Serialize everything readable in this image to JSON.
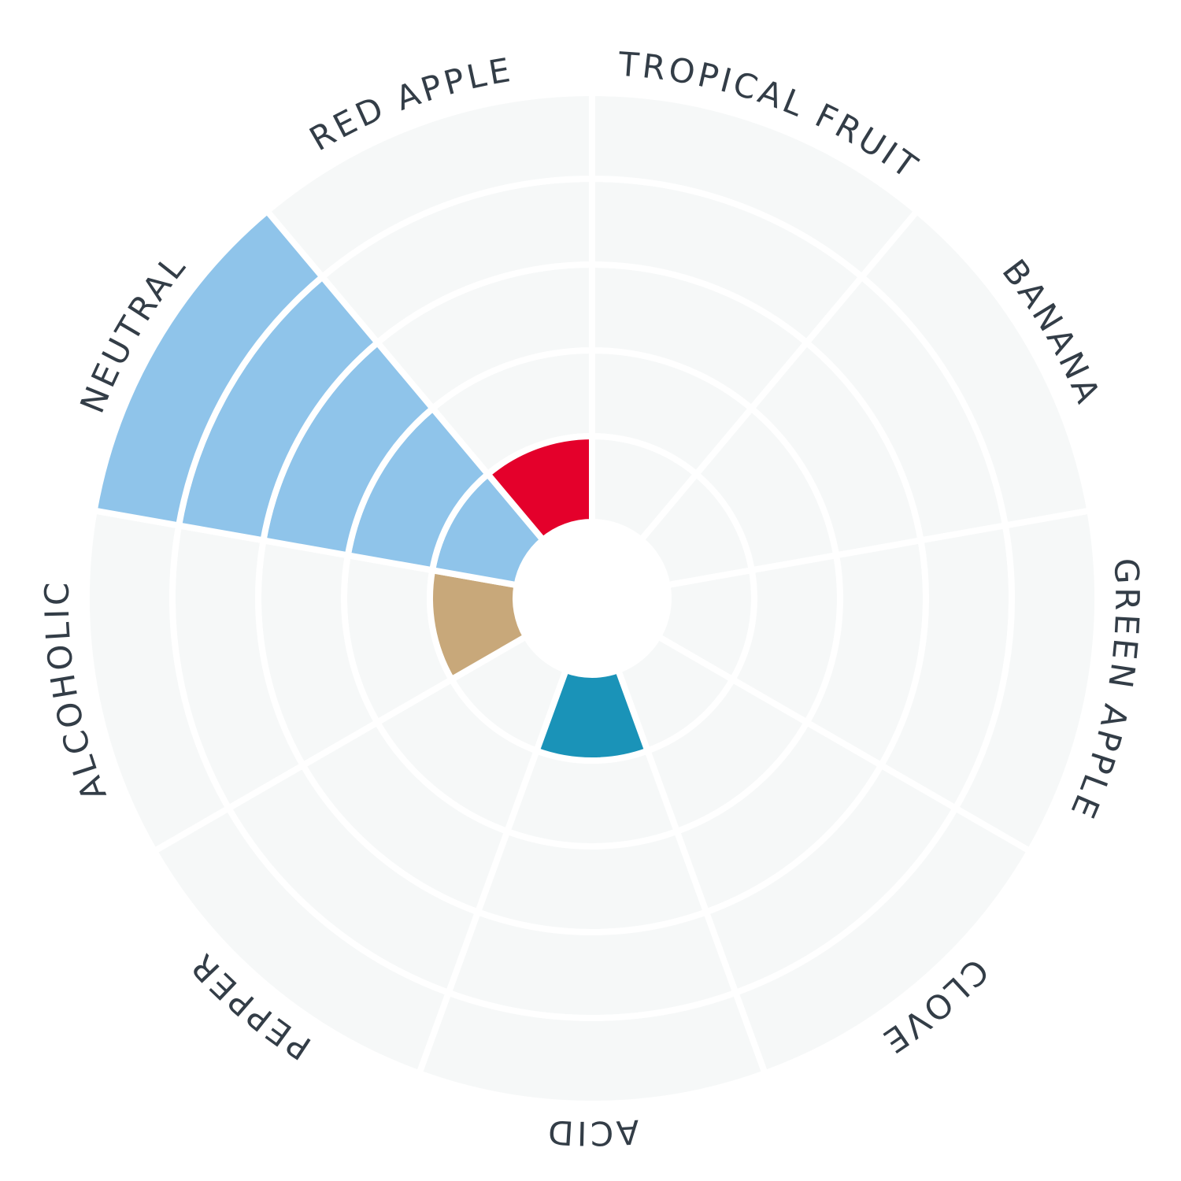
{
  "chart_data": {
    "type": "polar-bar",
    "categories": [
      "TROPICAL FRUIT",
      "BANANA",
      "GREEN APPLE",
      "CLOVE",
      "ACID",
      "PEPPER",
      "ALCOHOLIC",
      "NEUTRAL",
      "RED APPLE"
    ],
    "values": [
      0,
      0,
      0,
      0,
      1,
      0,
      1,
      5,
      1
    ],
    "colors": [
      "#8fc4ea",
      "#8fc4ea",
      "#8fc4ea",
      "#8fc4ea",
      "#1a93b8",
      "#c8a87a",
      "#c8a87a",
      "#8fc4ea",
      "#e4002b"
    ],
    "rlim": [
      0,
      5
    ],
    "rings": 5,
    "background_color": "#f6f8f8",
    "label_color": "#333d47"
  }
}
